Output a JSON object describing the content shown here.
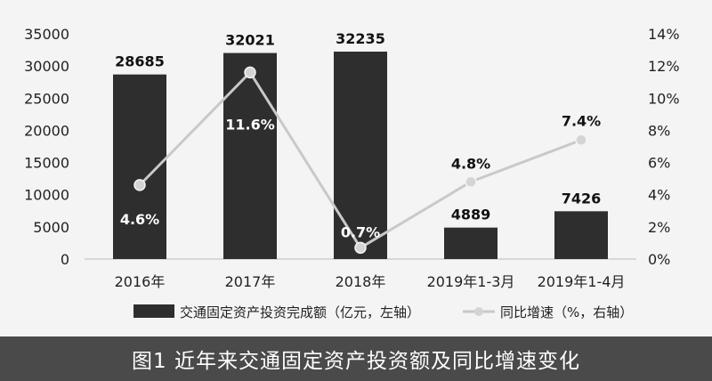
{
  "caption": "图1 近年来交通固定资产投资额及同比增速变化",
  "chart_data": {
    "type": "bar",
    "categories": [
      "2016年",
      "2017年",
      "2018年",
      "2019年1-3月",
      "2019年1-4月"
    ],
    "series": [
      {
        "name": "交通固定资产投资完成额（亿元，左轴）",
        "type": "bar",
        "axis": "left",
        "values": [
          28685,
          32021,
          32235,
          4889,
          7426
        ],
        "labels": [
          "28685",
          "32021",
          "32235",
          "4889",
          "7426"
        ],
        "color": "#2e2e2e"
      },
      {
        "name": "同比增速（%，右轴）",
        "type": "line",
        "axis": "right",
        "values": [
          4.6,
          11.6,
          0.7,
          4.8,
          7.4
        ],
        "labels": [
          "4.6%",
          "11.6%",
          "0.7%",
          "4.8%",
          "7.4%"
        ],
        "color": "#c9c9c9"
      }
    ],
    "y_left": {
      "min": 0,
      "max": 35000,
      "ticks": [
        0,
        5000,
        10000,
        15000,
        20000,
        25000,
        30000,
        35000
      ],
      "tick_labels": [
        "0",
        "5000",
        "10000",
        "15000",
        "20000",
        "25000",
        "30000",
        "35000"
      ]
    },
    "y_right": {
      "min": 0,
      "max": 14,
      "ticks": [
        0,
        2,
        4,
        6,
        8,
        10,
        12,
        14
      ],
      "tick_labels": [
        "0%",
        "2%",
        "4%",
        "6%",
        "8%",
        "10%",
        "12%",
        "14%"
      ]
    },
    "grid": false,
    "legend_position": "bottom"
  }
}
